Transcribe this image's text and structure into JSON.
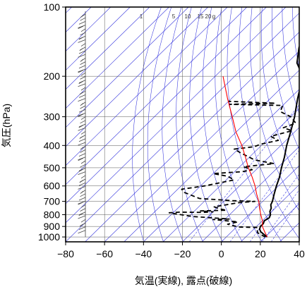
{
  "chart_data": {
    "type": "line",
    "title": "",
    "xlabel": "気温(実線), 露点(破線)",
    "ylabel": "気圧(hPa)",
    "xlim": [
      -80,
      40
    ],
    "ylim": [
      1050,
      100
    ],
    "y_scale": "log",
    "grid": true,
    "x_ticks": [
      "−80",
      "−60",
      "−40",
      "−20",
      "0",
      "20",
      "40"
    ],
    "y_ticks": [
      "100",
      "200",
      "300",
      "400",
      "500",
      "600",
      "700",
      "800",
      "900",
      "1000"
    ],
    "mixing_ratio_labels": [
      "1",
      "5",
      "10",
      "15",
      "20",
      "g"
    ],
    "colors": {
      "temperature": "#000000",
      "dewpoint": "#000000",
      "parcel": "#ff0000",
      "isotherm_grid": "#3333dd",
      "axes": "#000000"
    },
    "series": [
      {
        "style": "solid",
        "points": [
          [
            21,
            1000
          ],
          [
            18,
            975
          ],
          [
            15,
            950
          ],
          [
            13,
            925
          ],
          [
            12,
            900
          ],
          [
            12,
            875
          ],
          [
            11,
            850
          ],
          [
            12,
            825
          ],
          [
            11,
            800
          ],
          [
            9,
            775
          ],
          [
            8,
            750
          ],
          [
            6,
            725
          ],
          [
            5,
            700
          ],
          [
            2,
            650
          ],
          [
            -1,
            600
          ],
          [
            -4,
            550
          ],
          [
            -8,
            500
          ],
          [
            -12,
            450
          ],
          [
            -17,
            400
          ],
          [
            -22,
            350
          ],
          [
            -28,
            300
          ],
          [
            -36,
            250
          ],
          [
            -45,
            200
          ],
          [
            -55,
            175
          ],
          [
            -62,
            150
          ],
          [
            -67,
            130
          ],
          [
            -69,
            115
          ],
          [
            -70,
            105
          ],
          [
            -70,
            100
          ]
        ]
      },
      {
        "style": "dashed",
        "points": [
          [
            20,
            1000
          ],
          [
            14,
            960
          ],
          [
            12,
            930
          ],
          [
            11,
            910
          ],
          [
            1,
            905
          ],
          [
            -6,
            880
          ],
          [
            -2,
            860
          ],
          [
            -16,
            840
          ],
          [
            -8,
            835
          ],
          [
            -28,
            815
          ],
          [
            -35,
            800
          ],
          [
            -42,
            785
          ],
          [
            -37,
            780
          ],
          [
            -25,
            782
          ],
          [
            -20,
            778
          ],
          [
            -27,
            770
          ],
          [
            -14,
            765
          ],
          [
            -18,
            755
          ],
          [
            -22,
            740
          ],
          [
            -12,
            710
          ],
          [
            -4,
            700
          ],
          [
            -16,
            695
          ],
          [
            -34,
            680
          ],
          [
            -45,
            640
          ],
          [
            -48,
            620
          ],
          [
            -38,
            600
          ],
          [
            -26,
            565
          ],
          [
            -31,
            545
          ],
          [
            -40,
            530
          ],
          [
            -26,
            520
          ],
          [
            -22,
            510
          ],
          [
            -28,
            495
          ],
          [
            -14,
            480
          ],
          [
            -26,
            462
          ],
          [
            -37,
            430
          ],
          [
            -42,
            415
          ],
          [
            -33,
            405
          ],
          [
            -31,
            395
          ],
          [
            -24,
            380
          ],
          [
            -30,
            365
          ],
          [
            -22,
            345
          ],
          [
            -28,
            335
          ],
          [
            -24,
            320
          ],
          [
            -30,
            300
          ],
          [
            -38,
            285
          ],
          [
            -40,
            268
          ],
          [
            -68,
            265
          ],
          [
            -45,
            262
          ],
          [
            -70,
            257
          ]
        ]
      },
      {
        "style": "parcel",
        "points": [
          [
            21,
            1000
          ],
          [
            17,
            950
          ],
          [
            13,
            900
          ],
          [
            10,
            850
          ],
          [
            6,
            800
          ],
          [
            2,
            750
          ],
          [
            -2,
            700
          ],
          [
            -7,
            650
          ],
          [
            -12,
            600
          ],
          [
            -18,
            550
          ],
          [
            -25,
            500
          ],
          [
            -32,
            450
          ],
          [
            -40,
            400
          ],
          [
            -50,
            350
          ],
          [
            -60,
            300
          ],
          [
            -72,
            250
          ],
          [
            -86,
            200
          ]
        ]
      }
    ]
  }
}
